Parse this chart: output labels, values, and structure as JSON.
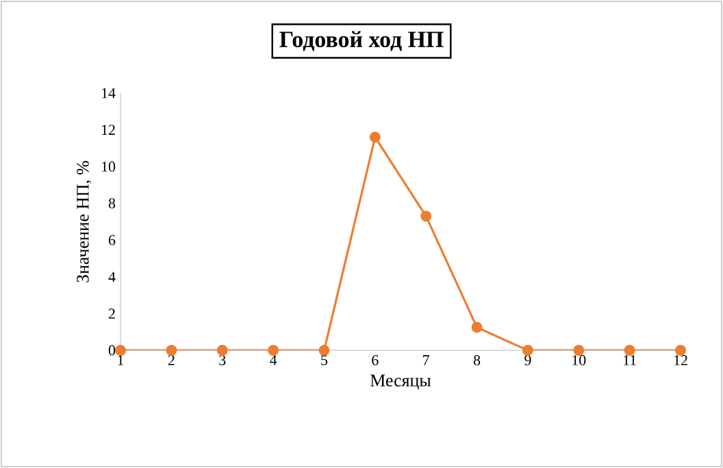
{
  "chart_data": {
    "type": "line",
    "title": "Годовой ход НП",
    "xlabel": "Месяцы",
    "ylabel": "Значение НП, %",
    "x": [
      1,
      2,
      3,
      4,
      5,
      6,
      7,
      8,
      9,
      10,
      11,
      12
    ],
    "series": [
      {
        "color": "#ed7d31",
        "values": [
          0,
          0,
          0,
          0,
          0,
          11.6,
          7.3,
          1.25,
          0,
          0,
          0,
          0
        ]
      }
    ],
    "xlim": [
      1,
      12
    ],
    "xticks": [
      1,
      2,
      3,
      4,
      5,
      6,
      7,
      8,
      9,
      10,
      11,
      12
    ],
    "ylim": [
      0,
      14
    ],
    "yticks": [
      0,
      2,
      4,
      6,
      8,
      10,
      12,
      14
    ],
    "grid": false,
    "marker": "circle",
    "line_style": "solid"
  }
}
